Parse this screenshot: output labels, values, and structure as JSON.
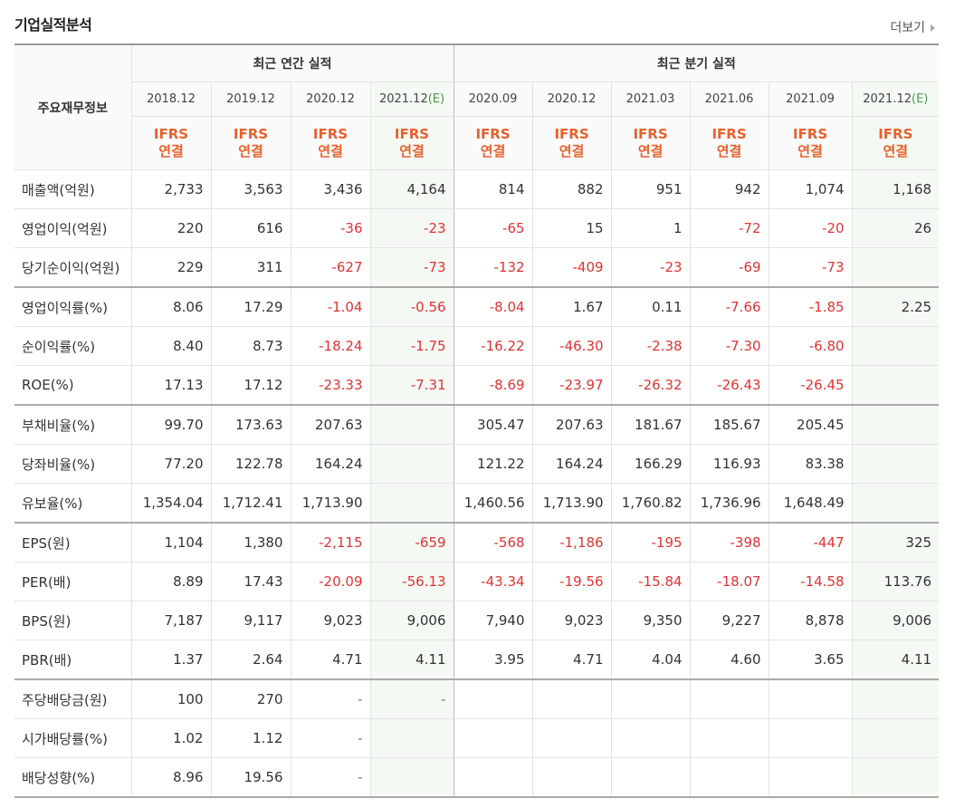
{
  "header": {
    "title": "기업실적분석",
    "more_label": "더보기"
  },
  "table": {
    "row_header_label": "주요재무정보",
    "group_annual": "최근 연간 실적",
    "group_quarter": "최근 분기 실적",
    "periods": [
      "2018.12",
      "2019.12",
      "2020.12",
      "2021.12",
      "2020.09",
      "2020.12",
      "2021.03",
      "2021.06",
      "2021.09",
      "2021.12"
    ],
    "estimate_mark": "(E)",
    "ifrs_line1": "IFRS",
    "ifrs_line2": "연결",
    "rows": [
      {
        "label": "매출액(억원)",
        "values": [
          "2,733",
          "3,563",
          "3,436",
          "4,164",
          "814",
          "882",
          "951",
          "942",
          "1,074",
          "1,168"
        ]
      },
      {
        "label": "영업이익(억원)",
        "values": [
          "220",
          "616",
          "-36",
          "-23",
          "-65",
          "15",
          "1",
          "-72",
          "-20",
          "26"
        ]
      },
      {
        "label": "당기순이익(억원)",
        "values": [
          "229",
          "311",
          "-627",
          "-73",
          "-132",
          "-409",
          "-23",
          "-69",
          "-73",
          ""
        ]
      },
      {
        "label": "영업이익률(%)",
        "values": [
          "8.06",
          "17.29",
          "-1.04",
          "-0.56",
          "-8.04",
          "1.67",
          "0.11",
          "-7.66",
          "-1.85",
          "2.25"
        ]
      },
      {
        "label": "순이익률(%)",
        "values": [
          "8.40",
          "8.73",
          "-18.24",
          "-1.75",
          "-16.22",
          "-46.30",
          "-2.38",
          "-7.30",
          "-6.80",
          ""
        ]
      },
      {
        "label": "ROE(%)",
        "values": [
          "17.13",
          "17.12",
          "-23.33",
          "-7.31",
          "-8.69",
          "-23.97",
          "-26.32",
          "-26.43",
          "-26.45",
          ""
        ]
      },
      {
        "label": "부채비율(%)",
        "values": [
          "99.70",
          "173.63",
          "207.63",
          "",
          "305.47",
          "207.63",
          "181.67",
          "185.67",
          "205.45",
          ""
        ]
      },
      {
        "label": "당좌비율(%)",
        "values": [
          "77.20",
          "122.78",
          "164.24",
          "",
          "121.22",
          "164.24",
          "166.29",
          "116.93",
          "83.38",
          ""
        ]
      },
      {
        "label": "유보율(%)",
        "values": [
          "1,354.04",
          "1,712.41",
          "1,713.90",
          "",
          "1,460.56",
          "1,713.90",
          "1,760.82",
          "1,736.96",
          "1,648.49",
          ""
        ]
      },
      {
        "label": "EPS(원)",
        "values": [
          "1,104",
          "1,380",
          "-2,115",
          "-659",
          "-568",
          "-1,186",
          "-195",
          "-398",
          "-447",
          "325"
        ]
      },
      {
        "label": "PER(배)",
        "values": [
          "8.89",
          "17.43",
          "-20.09",
          "-56.13",
          "-43.34",
          "-19.56",
          "-15.84",
          "-18.07",
          "-14.58",
          "113.76"
        ]
      },
      {
        "label": "BPS(원)",
        "values": [
          "7,187",
          "9,117",
          "9,023",
          "9,006",
          "7,940",
          "9,023",
          "9,350",
          "9,227",
          "8,878",
          "9,006"
        ]
      },
      {
        "label": "PBR(배)",
        "values": [
          "1.37",
          "2.64",
          "4.71",
          "4.11",
          "3.95",
          "4.71",
          "4.04",
          "4.60",
          "3.65",
          "4.11"
        ]
      },
      {
        "label": "주당배당금(원)",
        "values": [
          "100",
          "270",
          "-",
          "-",
          "",
          "",
          "",
          "",
          "",
          ""
        ]
      },
      {
        "label": "시가배당률(%)",
        "values": [
          "1.02",
          "1.12",
          "-",
          "",
          "",
          "",
          "",
          "",
          "",
          ""
        ]
      },
      {
        "label": "배당성향(%)",
        "values": [
          "8.96",
          "19.56",
          "-",
          "",
          "",
          "",
          "",
          "",
          "",
          ""
        ]
      }
    ]
  }
}
